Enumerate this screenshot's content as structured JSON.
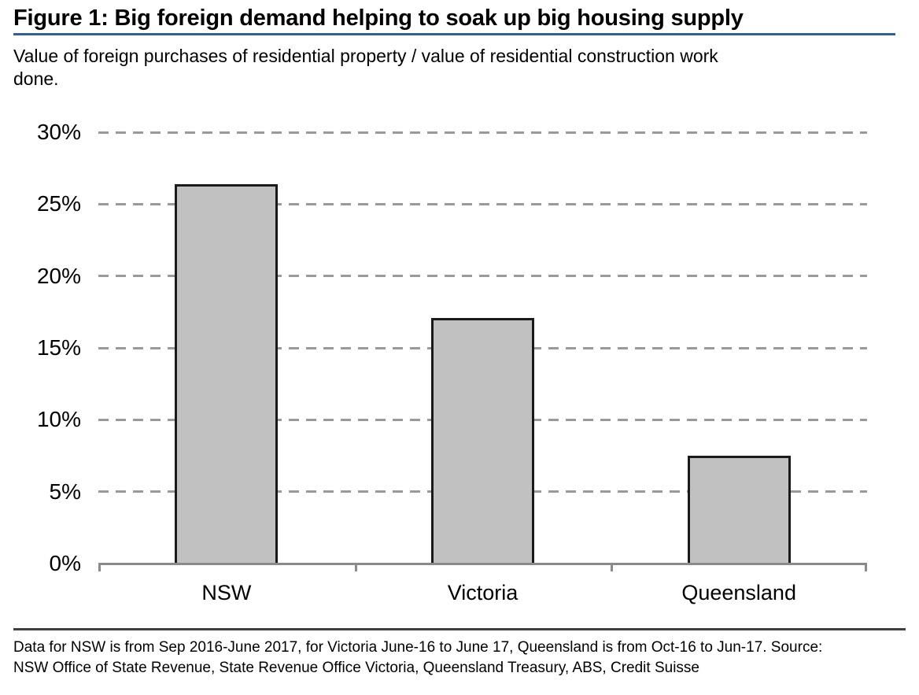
{
  "figure": {
    "title": "Figure 1: Big foreign demand helping to soak up big housing supply",
    "subtitle_lines": [
      "Value of foreign purchases of residential property / value of residential construction work",
      "done."
    ],
    "footer_lines": [
      "Data for NSW is from Sep 2016-June 2017, for Victoria June-16 to June 17, Queensland is from Oct-16 to Jun-17. Source:",
      "NSW Office of State Revenue, State Revenue Office Victoria, Queensland Treasury, ABS, Credit Suisse"
    ]
  },
  "colors": {
    "title_underline": "#365f91",
    "separator": "#404040",
    "axis": "#8a8a8a",
    "gridline": "#9a9a9a",
    "bar_fill": "#c1c1c1",
    "bar_border": "#1a1a1a",
    "text": "#000000"
  },
  "chart_data": {
    "type": "bar",
    "categories": [
      "NSW",
      "Victoria",
      "Queensland"
    ],
    "values": [
      26.4,
      17.1,
      7.5
    ],
    "unit": "%",
    "title": "Figure 1: Big foreign demand helping to soak up big housing supply",
    "subtitle": "Value of foreign purchases of residential property / value of residential construction work done.",
    "xlabel": "",
    "ylabel": "",
    "ylim": [
      0,
      30
    ],
    "y_ticks": [
      0,
      5,
      10,
      15,
      20,
      25,
      30
    ],
    "y_tick_labels": [
      "0%",
      "5%",
      "10%",
      "15%",
      "20%",
      "25%",
      "30%"
    ],
    "grid": "horizontal-dashed",
    "legend": "none",
    "bar_fill": "#c1c1c1",
    "bar_border": "#1a1a1a"
  }
}
